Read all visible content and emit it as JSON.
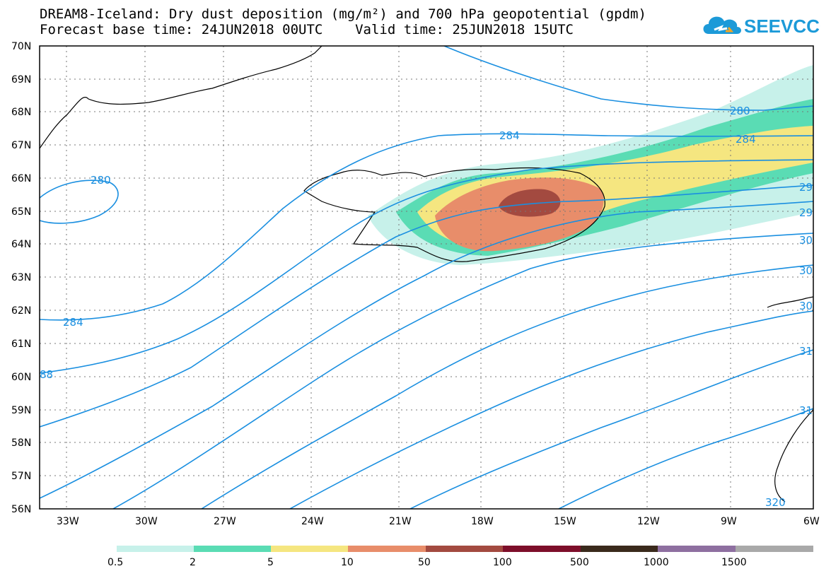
{
  "header": {
    "title_line1": "DREAM8-Iceland: Dry dust deposition (mg/m²) and 700 hPa geopotential (gpdm)",
    "title_line2": "Forecast base time: 24JUN2018 00UTC    Valid time: 25JUN2018 15UTC",
    "logo_text": "SEEVCCC"
  },
  "map": {
    "lat_labels": [
      "70N",
      "69N",
      "68N",
      "67N",
      "66N",
      "65N",
      "64N",
      "63N",
      "62N",
      "61N",
      "60N",
      "59N",
      "58N",
      "57N",
      "56N"
    ],
    "lon_labels": [
      "33W",
      "30W",
      "27W",
      "24W",
      "21W",
      "18W",
      "15W",
      "12W",
      "9W",
      "6W"
    ],
    "contour_labels": [
      "280",
      "284",
      "280",
      "284",
      "284",
      "88",
      "29",
      "29",
      "30",
      "30",
      "30",
      "31",
      "31",
      "320"
    ]
  },
  "legend": {
    "labels": [
      "0.5",
      "2",
      "5",
      "10",
      "50",
      "100",
      "500",
      "1000",
      "1500"
    ],
    "colors": [
      "#c7f1ea",
      "#5adcb4",
      "#f5e680",
      "#e88d6a",
      "#a34a40",
      "#7d0e2a",
      "#3a2a1c",
      "#8e6fa0",
      "#a9a9a9"
    ]
  }
}
